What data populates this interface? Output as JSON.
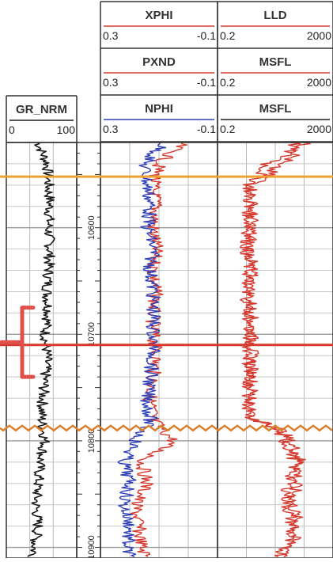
{
  "chart_data": {
    "type": "line",
    "title": "",
    "depth_axis": {
      "range": [
        10520,
        10910
      ],
      "tick_labels": [
        {
          "value": 10600,
          "label": "10600"
        },
        {
          "value": 10700,
          "label": "10700"
        },
        {
          "value": 10800,
          "label": "10800"
        },
        {
          "value": 10900,
          "label": "10900"
        }
      ]
    },
    "tracks": [
      {
        "headers": [
          {
            "name": "GR_NRM",
            "min": "0",
            "max": "100",
            "color": "#1a1a1a"
          }
        ]
      },
      {
        "headers": [
          {
            "name": "XPHI",
            "min": "0.3",
            "max": "-0.1",
            "color": "#d63a2f"
          },
          {
            "name": "PXND",
            "min": "0.3",
            "max": "-0.1",
            "color": "#d63a2f"
          },
          {
            "name": "NPHI",
            "min": "0.3",
            "max": "-0.1",
            "color": "#2f3fb8"
          }
        ],
        "scale": "linear"
      },
      {
        "headers": [
          {
            "name": "LLD",
            "min": "0.2",
            "max": "2000",
            "color": "#d63a2f"
          },
          {
            "name": "MSFL",
            "min": "0.2",
            "max": "2000",
            "color": "#d63a2f"
          },
          {
            "name": "MSFL",
            "min": "0.2",
            "max": "2000",
            "color": "#1a1a1a"
          }
        ],
        "scale": "log"
      }
    ],
    "series": [
      {
        "name": "GR_NRM",
        "track": 0,
        "depth": [
          10520,
          10540,
          10560,
          10580,
          10600,
          10620,
          10640,
          10660,
          10680,
          10700,
          10720,
          10740,
          10760,
          10780,
          10800,
          10820,
          10840,
          10860,
          10880,
          10900,
          10910
        ],
        "values": [
          45,
          58,
          60,
          62,
          60,
          62,
          60,
          58,
          60,
          55,
          58,
          55,
          52,
          50,
          55,
          48,
          45,
          42,
          45,
          40,
          38
        ]
      },
      {
        "name": "XPHI",
        "track": 1,
        "depth": [
          10520,
          10540,
          10560,
          10580,
          10600,
          10620,
          10640,
          10660,
          10680,
          10700,
          10720,
          10740,
          10760,
          10780,
          10800,
          10820,
          10840,
          10860,
          10880,
          10900,
          10910
        ],
        "values": [
          0.02,
          0.1,
          0.12,
          0.11,
          0.12,
          0.11,
          0.12,
          0.11,
          0.12,
          0.12,
          0.11,
          0.12,
          0.13,
          0.12,
          0.05,
          0.16,
          0.14,
          0.18,
          0.17,
          0.16,
          0.14
        ]
      },
      {
        "name": "NPHI",
        "track": 1,
        "depth": [
          10520,
          10540,
          10560,
          10580,
          10600,
          10620,
          10640,
          10660,
          10680,
          10700,
          10720,
          10740,
          10760,
          10780,
          10800,
          10820,
          10840,
          10860,
          10880,
          10900,
          10910
        ],
        "values": [
          0.08,
          0.15,
          0.14,
          0.13,
          0.14,
          0.12,
          0.13,
          0.12,
          0.12,
          0.12,
          0.12,
          0.13,
          0.14,
          0.13,
          0.18,
          0.22,
          0.2,
          0.22,
          0.2,
          0.21,
          0.2
        ]
      },
      {
        "name": "LLD",
        "track": 2,
        "depth": [
          10520,
          10540,
          10560,
          10580,
          10600,
          10620,
          10640,
          10660,
          10680,
          10700,
          10720,
          10740,
          10760,
          10780,
          10800,
          10820,
          10840,
          10860,
          10880,
          10900,
          10910
        ],
        "values": [
          200,
          20,
          3,
          3,
          3,
          2.5,
          3,
          2.5,
          3,
          3,
          3,
          3,
          3,
          2,
          60,
          150,
          100,
          80,
          120,
          60,
          50
        ]
      },
      {
        "name": "MSFL",
        "track": 2,
        "depth": [
          10520,
          10540,
          10560,
          10580,
          10600,
          10620,
          10640,
          10660,
          10680,
          10700,
          10720,
          10740,
          10760,
          10780,
          10800,
          10820,
          10840,
          10860,
          10880,
          10900,
          10910
        ],
        "values": [
          100,
          10,
          2.5,
          2.5,
          2.5,
          2,
          2.5,
          2,
          2.5,
          2.5,
          2.5,
          2.5,
          2.5,
          2.5,
          40,
          100,
          60,
          50,
          80,
          40,
          30
        ]
      }
    ],
    "annotations": [
      {
        "type": "line",
        "depth": 10552,
        "color": "#f0a030"
      },
      {
        "type": "line",
        "depth": 10710,
        "color": "#d63a2f"
      },
      {
        "type": "wavy-line",
        "depth": 10788,
        "color": "#d9822b"
      },
      {
        "type": "bracket",
        "depth_range": [
          10675,
          10740
        ],
        "color": "#e0504a"
      }
    ],
    "grid": true
  }
}
